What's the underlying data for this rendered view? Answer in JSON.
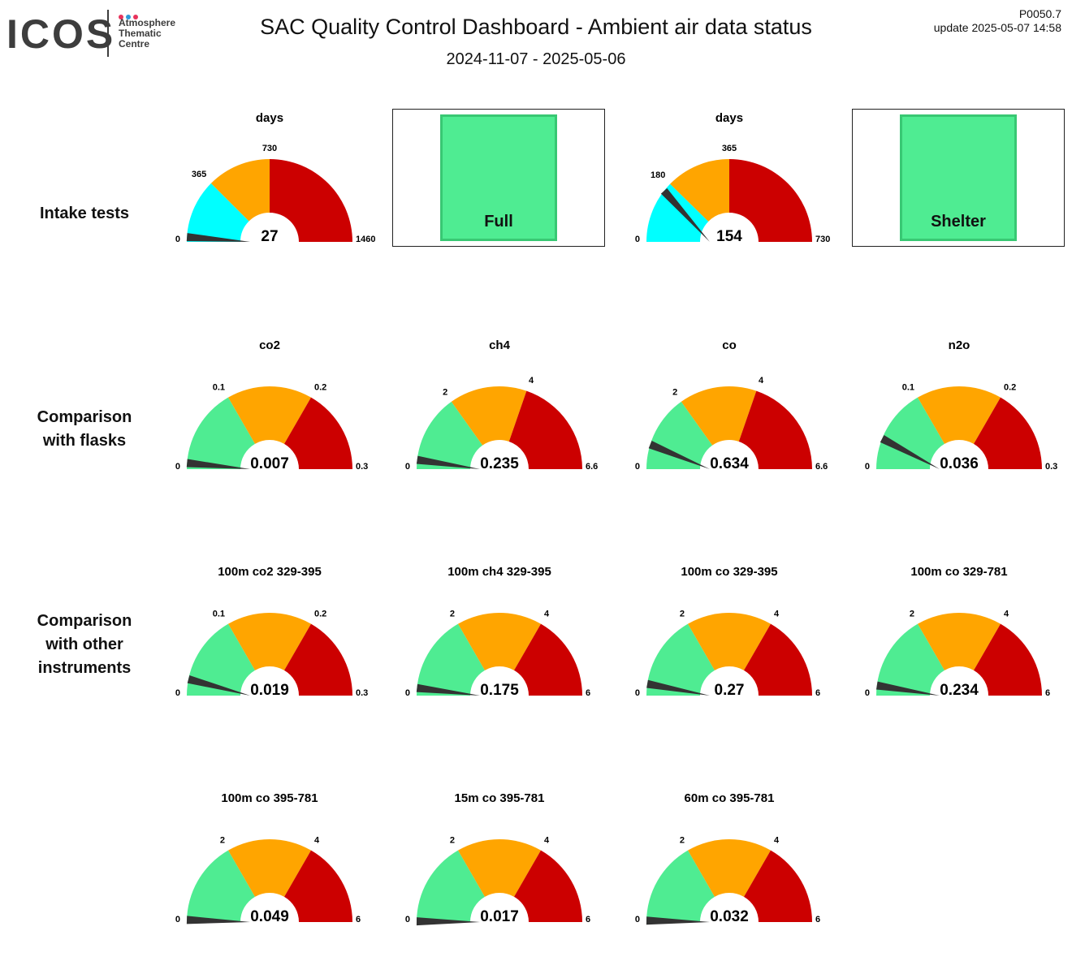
{
  "header": {
    "logo_word": "ICOS",
    "logo_lines": [
      "Atmosphere",
      "Thematic",
      "Centre"
    ],
    "logo_dot_colors": [
      "#e8335c",
      "#2e9ad8",
      "#e8335c"
    ],
    "title": "SAC  Quality Control Dashboard - Ambient air data status",
    "period": "2024-11-07 - 2025-05-06",
    "version": "P0050.7",
    "update": "update  2025-05-07 14:58"
  },
  "row_labels": [
    "Intake tests",
    "Comparison\nwith flasks",
    "Comparison\nwith other\ninstruments"
  ],
  "colors": {
    "cyan": "#00ffff",
    "green": "#4fec92",
    "orange": "#ffa500",
    "red": "#cc0000",
    "needle": "#333333"
  },
  "status_boxes": [
    {
      "label": "Full",
      "status": "ok"
    },
    {
      "label": "Shelter",
      "status": "ok"
    }
  ],
  "chart_data": [
    {
      "type": "gauge",
      "title": "days",
      "min": 0,
      "max": 1460,
      "thresholds": [
        365,
        730
      ],
      "value": 27,
      "value_label": "27",
      "tick_labels": [
        "0",
        "365",
        "730",
        "1460"
      ],
      "colors": [
        "cyan",
        "orange",
        "red"
      ]
    },
    {
      "type": "gauge",
      "title": "days",
      "min": 0,
      "max": 730,
      "thresholds": [
        180,
        365
      ],
      "value": 154,
      "value_label": "154",
      "tick_labels": [
        "0",
        "180",
        "365",
        "730"
      ],
      "colors": [
        "cyan",
        "orange",
        "red"
      ]
    },
    {
      "type": "gauge",
      "title": "co2",
      "min": 0,
      "max": 0.3,
      "thresholds": [
        0.1,
        0.2
      ],
      "value": 0.007,
      "value_label": "0.007",
      "tick_labels": [
        "0",
        "0.1",
        "0.2",
        "0.3"
      ],
      "colors": [
        "green",
        "orange",
        "red"
      ]
    },
    {
      "type": "gauge",
      "title": "ch4",
      "min": 0,
      "max": 6.6,
      "thresholds": [
        2,
        4
      ],
      "value": 0.235,
      "value_label": "0.235",
      "tick_labels": [
        "0",
        "2",
        "4",
        "6.6"
      ],
      "colors": [
        "green",
        "orange",
        "red"
      ]
    },
    {
      "type": "gauge",
      "title": "co",
      "min": 0,
      "max": 6.6,
      "thresholds": [
        2,
        4
      ],
      "value": 0.634,
      "value_label": "0.634",
      "tick_labels": [
        "0",
        "2",
        "4",
        "6.6"
      ],
      "colors": [
        "green",
        "orange",
        "red"
      ]
    },
    {
      "type": "gauge",
      "title": "n2o",
      "min": 0,
      "max": 0.3,
      "thresholds": [
        0.1,
        0.2
      ],
      "value": 0.036,
      "value_label": "0.036",
      "tick_labels": [
        "0",
        "0.1",
        "0.2",
        "0.3"
      ],
      "colors": [
        "green",
        "orange",
        "red"
      ]
    },
    {
      "type": "gauge",
      "title": "100m co2 329-395",
      "min": 0,
      "max": 0.3,
      "thresholds": [
        0.1,
        0.2
      ],
      "value": 0.019,
      "value_label": "0.019",
      "tick_labels": [
        "0",
        "0.1",
        "0.2",
        "0.3"
      ],
      "colors": [
        "green",
        "orange",
        "red"
      ]
    },
    {
      "type": "gauge",
      "title": "100m ch4 329-395",
      "min": 0,
      "max": 6,
      "thresholds": [
        2,
        4
      ],
      "value": 0.175,
      "value_label": "0.175",
      "tick_labels": [
        "0",
        "2",
        "4",
        "6"
      ],
      "colors": [
        "green",
        "orange",
        "red"
      ]
    },
    {
      "type": "gauge",
      "title": "100m co 329-395",
      "min": 0,
      "max": 6,
      "thresholds": [
        2,
        4
      ],
      "value": 0.27,
      "value_label": "0.27",
      "tick_labels": [
        "0",
        "2",
        "4",
        "6"
      ],
      "colors": [
        "green",
        "orange",
        "red"
      ]
    },
    {
      "type": "gauge",
      "title": "100m co 329-781",
      "min": 0,
      "max": 6,
      "thresholds": [
        2,
        4
      ],
      "value": 0.234,
      "value_label": "0.234",
      "tick_labels": [
        "0",
        "2",
        "4",
        "6"
      ],
      "colors": [
        "green",
        "orange",
        "red"
      ]
    },
    {
      "type": "gauge",
      "title": "100m co 395-781",
      "min": 0,
      "max": 6,
      "thresholds": [
        2,
        4
      ],
      "value": 0.049,
      "value_label": "0.049",
      "tick_labels": [
        "0",
        "2",
        "4",
        "6"
      ],
      "colors": [
        "green",
        "orange",
        "red"
      ]
    },
    {
      "type": "gauge",
      "title": "15m co 395-781",
      "min": 0,
      "max": 6,
      "thresholds": [
        2,
        4
      ],
      "value": 0.017,
      "value_label": "0.017",
      "tick_labels": [
        "0",
        "2",
        "4",
        "6"
      ],
      "colors": [
        "green",
        "orange",
        "red"
      ]
    },
    {
      "type": "gauge",
      "title": "60m co 395-781",
      "min": 0,
      "max": 6,
      "thresholds": [
        2,
        4
      ],
      "value": 0.032,
      "value_label": "0.032",
      "tick_labels": [
        "0",
        "2",
        "4",
        "6"
      ],
      "colors": [
        "green",
        "orange",
        "red"
      ]
    }
  ]
}
